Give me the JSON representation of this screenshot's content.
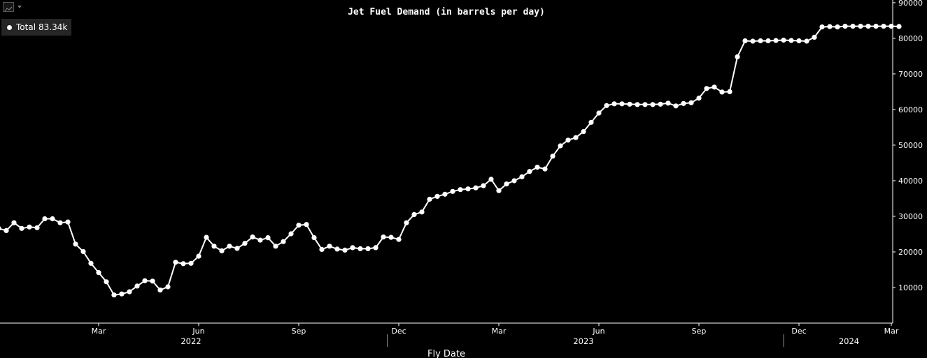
{
  "toolbar": {
    "chart_type_icon": "line-chart-icon"
  },
  "legend": {
    "label": "Total",
    "value": "83.34k"
  },
  "chart_data": {
    "type": "line",
    "title": "Jet Fuel Demand (in barrels per day)",
    "xlabel": "Fly Date",
    "ylabel": "",
    "ylim": [
      0,
      90000
    ],
    "yticks": [
      10000,
      20000,
      30000,
      40000,
      50000,
      60000,
      70000,
      80000,
      90000
    ],
    "y_axis_side": "right",
    "grid": false,
    "legend_position": "top-left",
    "color": "#ffffff",
    "month_ticks": [
      {
        "label": "Mar",
        "week": 13
      },
      {
        "label": "Jun",
        "week": 26
      },
      {
        "label": "Sep",
        "week": 39
      },
      {
        "label": "Dec",
        "week": 52
      },
      {
        "label": "Mar",
        "week": 65
      },
      {
        "label": "Jun",
        "week": 78
      },
      {
        "label": "Sep",
        "week": 91
      },
      {
        "label": "Dec",
        "week": 104
      },
      {
        "label": "Mar",
        "week": 116
      }
    ],
    "year_labels": [
      {
        "label": "2022",
        "week": 25
      },
      {
        "label": "2023",
        "week": 76
      },
      {
        "label": "2024",
        "week": 110.5
      }
    ],
    "year_separators": [
      50.5,
      102
    ],
    "series": [
      {
        "name": "Total",
        "values": [
          26600,
          26000,
          28200,
          26600,
          27000,
          26800,
          29300,
          29300,
          28200,
          28400,
          22200,
          20100,
          16800,
          14200,
          11600,
          7900,
          8200,
          8800,
          10400,
          11900,
          11800,
          9300,
          10200,
          17100,
          16700,
          16800,
          18800,
          24100,
          21600,
          20300,
          21600,
          21000,
          22400,
          24200,
          23300,
          24000,
          21600,
          22900,
          25100,
          27500,
          27700,
          24000,
          20700,
          21600,
          20800,
          20500,
          21200,
          20900,
          20900,
          21200,
          24200,
          24100,
          23500,
          28200,
          30500,
          31200,
          34800,
          35600,
          36200,
          37000,
          37500,
          37700,
          38000,
          38600,
          40400,
          37200,
          39100,
          40000,
          41100,
          42600,
          43800,
          43300,
          46900,
          49800,
          51400,
          52100,
          53800,
          56400,
          59000,
          61100,
          61600,
          61600,
          61500,
          61400,
          61400,
          61400,
          61500,
          61800,
          61000,
          61700,
          61900,
          63200,
          65900,
          66300,
          64900,
          65000,
          74800,
          79300,
          79200,
          79300,
          79300,
          79400,
          79500,
          79400,
          79300,
          79200,
          80300,
          83200,
          83300,
          83200,
          83400,
          83400,
          83400,
          83400,
          83400,
          83400,
          83400,
          83340
        ]
      }
    ]
  }
}
